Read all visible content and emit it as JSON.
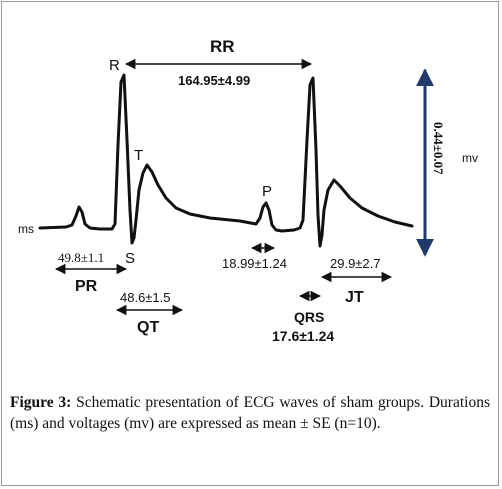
{
  "waves": {
    "R": "R",
    "T": "T",
    "P": "P",
    "S": "S"
  },
  "intervals": {
    "RR": {
      "label": "RR",
      "value": "164.95±4.99"
    },
    "PR": {
      "label": "PR",
      "value": "49.8±1.1"
    },
    "QT": {
      "label": "QT",
      "value": "48.6±1.5"
    },
    "QRS": {
      "label": "QRS",
      "value": "17.6±1.24"
    },
    "JT": {
      "label": "JT",
      "value": "29.9±2.7"
    },
    "PQ_small": {
      "value": "18.99±1.24"
    }
  },
  "voltage": {
    "value": "0.44±0.07",
    "unit": "mv"
  },
  "time_unit": "ms",
  "caption": {
    "label": "Figure 3:",
    "text": " Schematic presentation of ECG waves of sham groups. Durations (ms) and voltages (mv) are expressed as mean ± SE (n=10)."
  },
  "colors": {
    "voltage_bar": "#1f3a6b",
    "trace": "#111111"
  }
}
